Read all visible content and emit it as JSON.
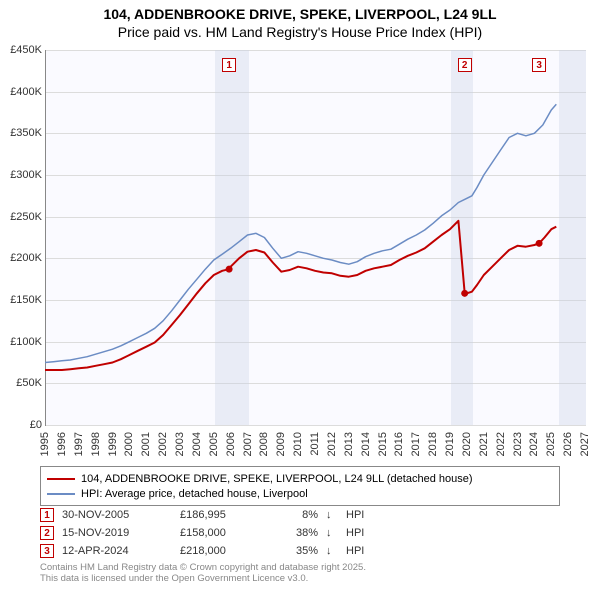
{
  "title": {
    "line1": "104, ADDENBROOKE DRIVE, SPEKE, LIVERPOOL, L24 9LL",
    "line2": "Price paid vs. HM Land Registry's House Price Index (HPI)",
    "fontsize": 14
  },
  "chart": {
    "type": "line",
    "background_color": "#fafaff",
    "grid_color": "#dcdcdc",
    "xlim": [
      1995,
      2027
    ],
    "ylim": [
      0,
      450000
    ],
    "ytick_step": 50000,
    "ytick_labels": [
      "£0",
      "£50K",
      "£100K",
      "£150K",
      "£200K",
      "£250K",
      "£300K",
      "£350K",
      "£400K",
      "£450K"
    ],
    "xticks": [
      1995,
      1996,
      1997,
      1998,
      1999,
      2000,
      2001,
      2002,
      2003,
      2004,
      2005,
      2006,
      2007,
      2008,
      2009,
      2010,
      2011,
      2012,
      2013,
      2014,
      2015,
      2016,
      2017,
      2018,
      2019,
      2020,
      2021,
      2022,
      2023,
      2024,
      2025,
      2026,
      2027
    ],
    "shaded_future": {
      "from": 2025.4,
      "to": 2027,
      "color": "rgba(200,210,230,0.35)"
    },
    "shaded_bands": [
      {
        "from": 2005.0,
        "to": 2007.0
      },
      {
        "from": 2019.0,
        "to": 2020.3
      }
    ],
    "series": [
      {
        "name": "104, ADDENBROOKE DRIVE, SPEKE, LIVERPOOL, L24 9LL (detached house)",
        "color": "#c00000",
        "line_width": 2,
        "points": [
          [
            1995.0,
            66000
          ],
          [
            1995.5,
            66000
          ],
          [
            1996.0,
            66000
          ],
          [
            1996.5,
            67000
          ],
          [
            1997.0,
            68000
          ],
          [
            1997.5,
            69000
          ],
          [
            1998.0,
            71000
          ],
          [
            1998.5,
            73000
          ],
          [
            1999.0,
            75000
          ],
          [
            1999.5,
            79000
          ],
          [
            2000.0,
            84000
          ],
          [
            2000.5,
            89000
          ],
          [
            2001.0,
            94000
          ],
          [
            2001.5,
            99000
          ],
          [
            2002.0,
            108000
          ],
          [
            2002.5,
            120000
          ],
          [
            2003.0,
            132000
          ],
          [
            2003.5,
            145000
          ],
          [
            2004.0,
            158000
          ],
          [
            2004.5,
            170000
          ],
          [
            2005.0,
            180000
          ],
          [
            2005.5,
            185000
          ],
          [
            2005.9,
            186995
          ],
          [
            2006.0,
            190000
          ],
          [
            2006.5,
            200000
          ],
          [
            2007.0,
            208000
          ],
          [
            2007.5,
            210000
          ],
          [
            2008.0,
            207000
          ],
          [
            2008.5,
            195000
          ],
          [
            2009.0,
            184000
          ],
          [
            2009.5,
            186000
          ],
          [
            2010.0,
            190000
          ],
          [
            2010.5,
            188000
          ],
          [
            2011.0,
            185000
          ],
          [
            2011.5,
            183000
          ],
          [
            2012.0,
            182000
          ],
          [
            2012.5,
            179000
          ],
          [
            2013.0,
            178000
          ],
          [
            2013.5,
            180000
          ],
          [
            2014.0,
            185000
          ],
          [
            2014.5,
            188000
          ],
          [
            2015.0,
            190000
          ],
          [
            2015.5,
            192000
          ],
          [
            2016.0,
            198000
          ],
          [
            2016.5,
            203000
          ],
          [
            2017.0,
            207000
          ],
          [
            2017.5,
            212000
          ],
          [
            2018.0,
            220000
          ],
          [
            2018.5,
            228000
          ],
          [
            2019.0,
            235000
          ],
          [
            2019.5,
            245000
          ],
          [
            2019.87,
            158000
          ],
          [
            2020.0,
            158000
          ],
          [
            2020.3,
            160000
          ],
          [
            2020.6,
            168000
          ],
          [
            2021.0,
            180000
          ],
          [
            2021.5,
            190000
          ],
          [
            2022.0,
            200000
          ],
          [
            2022.5,
            210000
          ],
          [
            2023.0,
            215000
          ],
          [
            2023.5,
            214000
          ],
          [
            2024.0,
            216000
          ],
          [
            2024.28,
            218000
          ],
          [
            2024.6,
            225000
          ],
          [
            2025.0,
            235000
          ],
          [
            2025.3,
            238000
          ]
        ],
        "markers": [
          {
            "id": "1",
            "x": 2005.91,
            "y": 186995
          },
          {
            "id": "2",
            "x": 2019.87,
            "y": 158000
          },
          {
            "id": "3",
            "x": 2024.28,
            "y": 218000
          }
        ]
      },
      {
        "name": "HPI: Average price, detached house, Liverpool",
        "color": "#6b8cc4",
        "line_width": 1.5,
        "points": [
          [
            1995.0,
            75000
          ],
          [
            1995.5,
            76000
          ],
          [
            1996.0,
            77000
          ],
          [
            1996.5,
            78000
          ],
          [
            1997.0,
            80000
          ],
          [
            1997.5,
            82000
          ],
          [
            1998.0,
            85000
          ],
          [
            1998.5,
            88000
          ],
          [
            1999.0,
            91000
          ],
          [
            1999.5,
            95000
          ],
          [
            2000.0,
            100000
          ],
          [
            2000.5,
            105000
          ],
          [
            2001.0,
            110000
          ],
          [
            2001.5,
            116000
          ],
          [
            2002.0,
            125000
          ],
          [
            2002.5,
            137000
          ],
          [
            2003.0,
            150000
          ],
          [
            2003.5,
            163000
          ],
          [
            2004.0,
            175000
          ],
          [
            2004.5,
            187000
          ],
          [
            2005.0,
            198000
          ],
          [
            2005.5,
            205000
          ],
          [
            2006.0,
            212000
          ],
          [
            2006.5,
            220000
          ],
          [
            2007.0,
            228000
          ],
          [
            2007.5,
            230000
          ],
          [
            2008.0,
            225000
          ],
          [
            2008.5,
            212000
          ],
          [
            2009.0,
            200000
          ],
          [
            2009.5,
            203000
          ],
          [
            2010.0,
            208000
          ],
          [
            2010.5,
            206000
          ],
          [
            2011.0,
            203000
          ],
          [
            2011.5,
            200000
          ],
          [
            2012.0,
            198000
          ],
          [
            2012.5,
            195000
          ],
          [
            2013.0,
            193000
          ],
          [
            2013.5,
            196000
          ],
          [
            2014.0,
            202000
          ],
          [
            2014.5,
            206000
          ],
          [
            2015.0,
            209000
          ],
          [
            2015.5,
            211000
          ],
          [
            2016.0,
            217000
          ],
          [
            2016.5,
            223000
          ],
          [
            2017.0,
            228000
          ],
          [
            2017.5,
            234000
          ],
          [
            2018.0,
            242000
          ],
          [
            2018.5,
            251000
          ],
          [
            2019.0,
            258000
          ],
          [
            2019.5,
            267000
          ],
          [
            2020.0,
            272000
          ],
          [
            2020.3,
            275000
          ],
          [
            2020.6,
            285000
          ],
          [
            2021.0,
            300000
          ],
          [
            2021.5,
            315000
          ],
          [
            2022.0,
            330000
          ],
          [
            2022.5,
            345000
          ],
          [
            2023.0,
            350000
          ],
          [
            2023.5,
            347000
          ],
          [
            2024.0,
            350000
          ],
          [
            2024.5,
            360000
          ],
          [
            2025.0,
            378000
          ],
          [
            2025.3,
            385000
          ]
        ]
      }
    ],
    "marker_boxes_top": [
      {
        "id": "1",
        "x": 2005.91
      },
      {
        "id": "2",
        "x": 2019.87
      },
      {
        "id": "3",
        "x": 2024.28
      }
    ]
  },
  "legend": {
    "items": [
      {
        "label": "104, ADDENBROOKE DRIVE, SPEKE, LIVERPOOL, L24 9LL (detached house)",
        "color": "#c00000"
      },
      {
        "label": "HPI: Average price, detached house, Liverpool",
        "color": "#6b8cc4"
      }
    ]
  },
  "sales": [
    {
      "id": "1",
      "date": "30-NOV-2005",
      "price": "£186,995",
      "pct": "8%",
      "arrow": "↓",
      "hpi": "HPI"
    },
    {
      "id": "2",
      "date": "15-NOV-2019",
      "price": "£158,000",
      "pct": "38%",
      "arrow": "↓",
      "hpi": "HPI"
    },
    {
      "id": "3",
      "date": "12-APR-2024",
      "price": "£218,000",
      "pct": "35%",
      "arrow": "↓",
      "hpi": "HPI"
    }
  ],
  "credit": {
    "line1": "Contains HM Land Registry data © Crown copyright and database right 2025.",
    "line2": "This data is licensed under the Open Government Licence v3.0."
  },
  "colors": {
    "marker_border": "#c00000",
    "text": "#333333"
  }
}
